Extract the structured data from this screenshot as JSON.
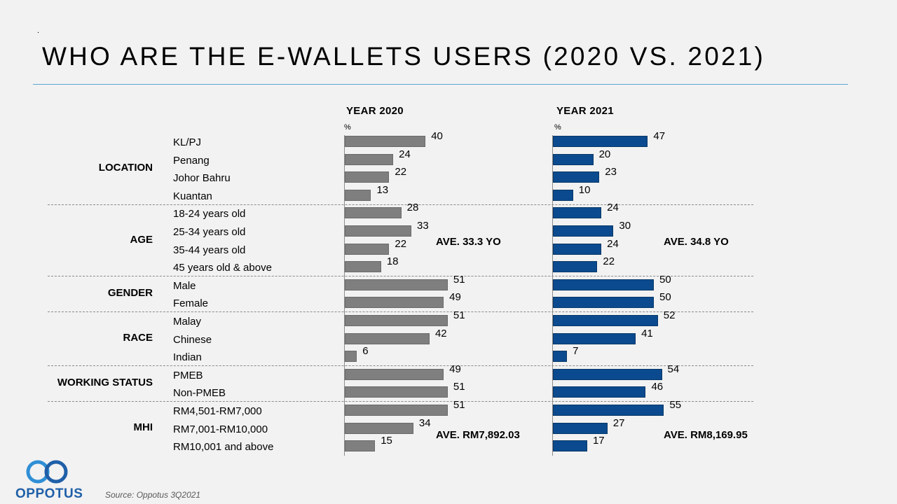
{
  "page": {
    "dot": ".",
    "title": "WHO ARE THE E-WALLETS USERS (2020 VS. 2021)",
    "source": "Source: Oppotus 3Q2021",
    "logo_text": "OPPOTUS"
  },
  "colors": {
    "bar2020": "#7f7f7f",
    "bar2021": "#0b4a8e",
    "rule": "#5aa7d6",
    "logo": "#1f5fa8"
  },
  "chart_data": {
    "type": "bar",
    "orientation": "horizontal",
    "unit": "%",
    "series_titles": [
      "YEAR 2020",
      "YEAR 2021"
    ],
    "series_unit_label": "%",
    "groups": [
      {
        "name": "LOCATION",
        "rows": [
          {
            "label": "KL/PJ",
            "y2020": 40,
            "y2021": 47
          },
          {
            "label": "Penang",
            "y2020": 24,
            "y2021": 20
          },
          {
            "label": "Johor Bahru",
            "y2020": 22,
            "y2021": 23
          },
          {
            "label": "Kuantan",
            "y2020": 13,
            "y2021": 10
          }
        ]
      },
      {
        "name": "AGE",
        "note2020": "AVE. 33.3 YO",
        "note2021": "AVE. 34.8 YO",
        "rows": [
          {
            "label": "18-24 years old",
            "y2020": 28,
            "y2021": 24
          },
          {
            "label": "25-34 years old",
            "y2020": 33,
            "y2021": 30
          },
          {
            "label": "35-44 years old",
            "y2020": 22,
            "y2021": 24
          },
          {
            "label": "45 years old & above",
            "y2020": 18,
            "y2021": 22
          }
        ]
      },
      {
        "name": "GENDER",
        "rows": [
          {
            "label": "Male",
            "y2020": 51,
            "y2021": 50
          },
          {
            "label": "Female",
            "y2020": 49,
            "y2021": 50
          }
        ]
      },
      {
        "name": "RACE",
        "rows": [
          {
            "label": "Malay",
            "y2020": 51,
            "y2021": 52
          },
          {
            "label": "Chinese",
            "y2020": 42,
            "y2021": 41
          },
          {
            "label": "Indian",
            "y2020": 6,
            "y2021": 7
          }
        ]
      },
      {
        "name": "WORKING STATUS",
        "rows": [
          {
            "label": "PMEB",
            "y2020": 49,
            "y2021": 54
          },
          {
            "label": "Non-PMEB",
            "y2020": 51,
            "y2021": 46
          }
        ]
      },
      {
        "name": "MHI",
        "note2020": "AVE. RM7,892.03",
        "note2021": "AVE. RM8,169.95",
        "rows": [
          {
            "label": "RM4,501-RM7,000",
            "y2020": 51,
            "y2021": 55
          },
          {
            "label": "RM7,001-RM10,000",
            "y2020": 34,
            "y2021": 27
          },
          {
            "label": "RM10,001 and above",
            "y2020": 15,
            "y2021": 17
          }
        ]
      }
    ]
  }
}
